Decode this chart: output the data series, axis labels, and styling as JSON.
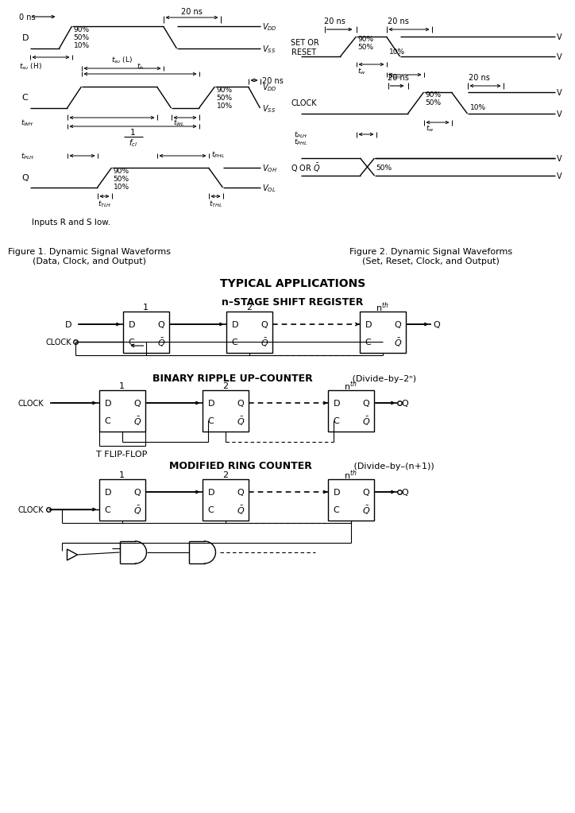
{
  "bg_color": "#ffffff",
  "fig1_caption_line1": "Figure 1. Dynamic Signal Waveforms",
  "fig1_caption_line2": "(Data, Clock, and Output)",
  "fig2_caption_line1": "Figure 2. Dynamic Signal Waveforms",
  "fig2_caption_line2": "(Set, Reset, Clock, and Output)",
  "typical_apps_title": "TYPICAL APPLICATIONS",
  "shift_reg_title": "n–STAGE SHIFT REGISTER",
  "ripple_title": "BINARY RIPPLE UP–COUNTER",
  "ripple_subtitle": " (Divide–by–2ⁿ)",
  "ring_title": "MODIFIED RING COUNTER",
  "ring_subtitle": " (Divide–by–(n+1))",
  "inputs_note": "Inputs R and S low.",
  "fig_width": 6.92,
  "fig_height": 10.02
}
